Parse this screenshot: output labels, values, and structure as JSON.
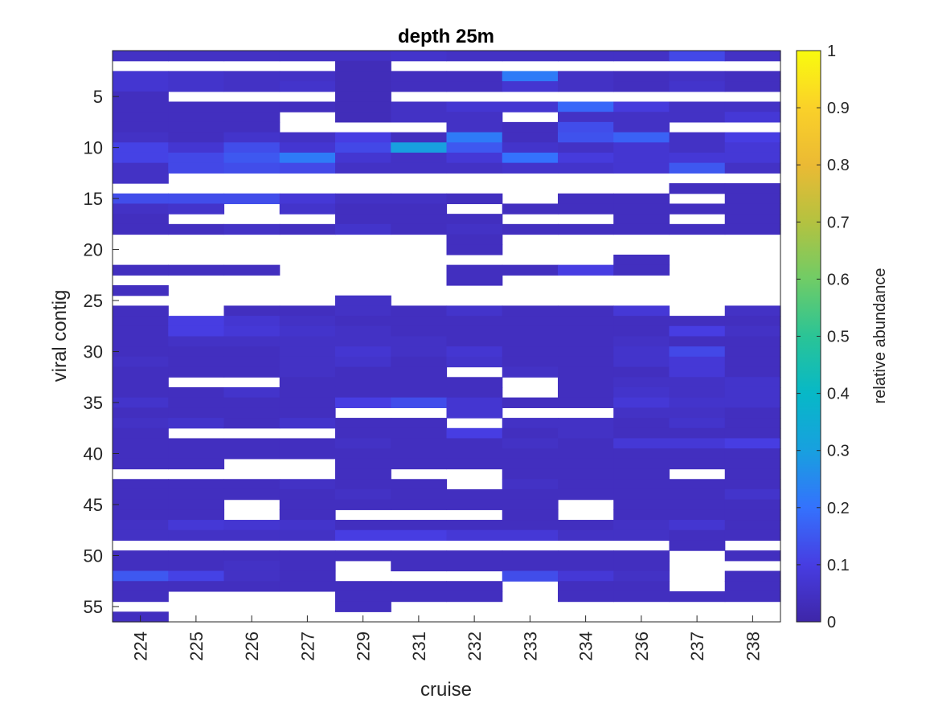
{
  "chart_data": {
    "type": "heatmap",
    "title": "depth 25m",
    "xlabel": "cruise",
    "ylabel": "viral contig",
    "colorbar_label": "relative abundance",
    "colormap": "parula",
    "clim": [
      0,
      1
    ],
    "colorbar_ticks": [
      "0",
      "0.1",
      "0.2",
      "0.3",
      "0.4",
      "0.5",
      "0.6",
      "0.7",
      "0.8",
      "0.9",
      "1"
    ],
    "y_ticks": [
      "5",
      "10",
      "15",
      "20",
      "25",
      "30",
      "35",
      "40",
      "45",
      "50",
      "55"
    ],
    "x": [
      "224",
      "225",
      "226",
      "227",
      "229",
      "231",
      "232",
      "233",
      "234",
      "236",
      "237",
      "238"
    ],
    "y": [
      1,
      2,
      3,
      4,
      5,
      6,
      7,
      8,
      9,
      10,
      11,
      12,
      13,
      14,
      15,
      16,
      17,
      18,
      19,
      20,
      21,
      22,
      23,
      24,
      25,
      26,
      27,
      28,
      29,
      30,
      31,
      32,
      33,
      34,
      35,
      36,
      37,
      38,
      39,
      40,
      41,
      42,
      43,
      44,
      45,
      46,
      47,
      48,
      49,
      50,
      51,
      52,
      53,
      54,
      55,
      56
    ],
    "missing_value": null,
    "values": [
      [
        0.05,
        0.05,
        0.05,
        0.05,
        0.05,
        0.06,
        0.05,
        0.05,
        0.05,
        0.05,
        0.12,
        0.05
      ],
      [
        null,
        null,
        null,
        null,
        0.03,
        null,
        null,
        null,
        null,
        null,
        null,
        null
      ],
      [
        0.07,
        0.06,
        0.05,
        0.05,
        0.03,
        0.04,
        0.04,
        0.22,
        0.05,
        0.04,
        0.05,
        0.04
      ],
      [
        0.07,
        0.06,
        0.05,
        0.06,
        0.03,
        0.04,
        0.04,
        0.07,
        0.05,
        0.04,
        0.06,
        0.04
      ],
      [
        0.04,
        null,
        null,
        null,
        0.03,
        null,
        null,
        null,
        null,
        null,
        null,
        null
      ],
      [
        0.04,
        0.04,
        0.04,
        0.04,
        0.03,
        0.05,
        0.07,
        0.07,
        0.18,
        0.09,
        0.05,
        0.05
      ],
      [
        0.04,
        0.04,
        0.04,
        null,
        0.03,
        0.05,
        0.05,
        null,
        0.05,
        0.05,
        0.05,
        0.08
      ],
      [
        0.04,
        0.04,
        0.04,
        null,
        null,
        null,
        0.05,
        0.04,
        0.13,
        0.05,
        null,
        null
      ],
      [
        0.05,
        0.04,
        0.06,
        0.05,
        0.1,
        0.04,
        0.22,
        0.04,
        0.14,
        0.17,
        0.05,
        0.1
      ],
      [
        0.11,
        0.07,
        0.13,
        0.07,
        0.12,
        0.3,
        0.15,
        0.06,
        0.05,
        0.07,
        0.05,
        0.08
      ],
      [
        0.11,
        0.12,
        0.15,
        0.22,
        0.07,
        0.05,
        0.08,
        0.2,
        0.09,
        0.07,
        0.08,
        0.08
      ],
      [
        0.05,
        0.12,
        0.13,
        0.12,
        0.05,
        0.05,
        0.05,
        0.06,
        0.06,
        0.07,
        0.15,
        0.05
      ],
      [
        0.05,
        null,
        null,
        null,
        null,
        null,
        null,
        null,
        null,
        null,
        null,
        null
      ],
      [
        null,
        null,
        null,
        null,
        null,
        null,
        null,
        null,
        null,
        null,
        0.04,
        0.04
      ],
      [
        0.13,
        0.13,
        0.13,
        0.08,
        0.05,
        0.05,
        0.04,
        null,
        0.04,
        0.04,
        null,
        0.04
      ],
      [
        0.05,
        0.06,
        null,
        0.06,
        0.04,
        0.04,
        null,
        0.04,
        0.04,
        0.04,
        0.04,
        0.04
      ],
      [
        0.04,
        null,
        null,
        null,
        0.04,
        0.04,
        0.04,
        null,
        null,
        0.04,
        null,
        0.04
      ],
      [
        0.04,
        0.04,
        0.05,
        0.04,
        0.06,
        0.04,
        0.05,
        0.04,
        0.04,
        0.04,
        0.04,
        0.04
      ],
      [
        null,
        null,
        null,
        null,
        null,
        null,
        0.04,
        null,
        null,
        null,
        null,
        null
      ],
      [
        null,
        null,
        null,
        null,
        null,
        null,
        0.04,
        null,
        null,
        null,
        null,
        null
      ],
      [
        null,
        null,
        null,
        null,
        null,
        null,
        null,
        null,
        null,
        0.04,
        null,
        null
      ],
      [
        0.04,
        0.04,
        0.04,
        null,
        null,
        null,
        0.04,
        0.04,
        0.1,
        0.04,
        null,
        null
      ],
      [
        null,
        null,
        null,
        null,
        null,
        null,
        0.04,
        null,
        null,
        null,
        null,
        null
      ],
      [
        0.04,
        null,
        null,
        null,
        null,
        null,
        null,
        null,
        null,
        null,
        null,
        null
      ],
      [
        null,
        null,
        null,
        null,
        0.05,
        null,
        null,
        null,
        null,
        null,
        null,
        null
      ],
      [
        0.04,
        null,
        0.04,
        0.04,
        0.05,
        0.04,
        0.06,
        0.04,
        0.04,
        0.08,
        null,
        0.05
      ],
      [
        0.04,
        0.1,
        0.07,
        0.05,
        0.04,
        0.04,
        0.04,
        0.04,
        0.04,
        0.04,
        0.04,
        0.04
      ],
      [
        0.04,
        0.1,
        0.08,
        0.06,
        0.05,
        0.04,
        0.04,
        0.04,
        0.04,
        0.04,
        0.1,
        0.05
      ],
      [
        0.04,
        0.05,
        0.05,
        0.05,
        0.05,
        0.05,
        0.04,
        0.04,
        0.04,
        0.05,
        0.04,
        0.04
      ],
      [
        0.04,
        0.04,
        0.04,
        0.05,
        0.07,
        0.05,
        0.07,
        0.04,
        0.04,
        0.06,
        0.12,
        0.04
      ],
      [
        0.05,
        0.04,
        0.04,
        0.05,
        0.06,
        0.04,
        0.06,
        0.04,
        0.04,
        0.06,
        0.08,
        0.04
      ],
      [
        0.04,
        0.04,
        0.04,
        0.05,
        0.04,
        0.04,
        null,
        0.05,
        0.04,
        0.04,
        0.08,
        0.04
      ],
      [
        0.04,
        null,
        null,
        0.04,
        0.04,
        0.04,
        0.04,
        null,
        0.04,
        0.05,
        0.05,
        0.06
      ],
      [
        0.04,
        0.04,
        0.06,
        0.04,
        0.04,
        0.04,
        0.04,
        null,
        0.04,
        0.06,
        0.05,
        0.06
      ],
      [
        0.06,
        0.04,
        0.04,
        0.04,
        0.1,
        0.13,
        0.07,
        0.04,
        0.04,
        0.08,
        0.06,
        0.06
      ],
      [
        0.04,
        0.04,
        0.04,
        0.04,
        null,
        null,
        0.07,
        null,
        null,
        0.05,
        0.05,
        0.04
      ],
      [
        0.05,
        0.06,
        0.04,
        0.06,
        0.04,
        0.04,
        null,
        0.05,
        0.05,
        0.04,
        0.06,
        0.04
      ],
      [
        0.04,
        null,
        null,
        null,
        0.04,
        0.04,
        0.1,
        0.04,
        0.05,
        0.04,
        0.04,
        0.04
      ],
      [
        0.04,
        0.04,
        0.04,
        0.04,
        0.05,
        0.04,
        0.04,
        0.05,
        0.04,
        0.08,
        0.08,
        0.1
      ],
      [
        0.04,
        0.04,
        0.04,
        0.04,
        0.04,
        0.04,
        0.04,
        0.04,
        0.04,
        0.04,
        0.04,
        0.04
      ],
      [
        0.04,
        0.04,
        null,
        null,
        0.04,
        0.04,
        0.04,
        0.04,
        0.04,
        0.04,
        0.04,
        0.04
      ],
      [
        null,
        null,
        null,
        null,
        0.04,
        null,
        null,
        0.04,
        0.04,
        0.04,
        null,
        0.04
      ],
      [
        0.04,
        0.04,
        0.04,
        0.05,
        0.04,
        0.04,
        null,
        0.05,
        0.04,
        0.04,
        0.04,
        0.04
      ],
      [
        0.04,
        0.04,
        0.04,
        0.04,
        0.05,
        0.04,
        0.04,
        0.04,
        0.04,
        0.04,
        0.04,
        0.06
      ],
      [
        0.04,
        0.04,
        null,
        0.04,
        0.04,
        0.04,
        0.04,
        0.04,
        null,
        0.04,
        0.04,
        0.04
      ],
      [
        0.04,
        0.04,
        null,
        0.04,
        null,
        null,
        null,
        0.04,
        null,
        0.04,
        0.04,
        0.04
      ],
      [
        0.05,
        0.08,
        0.07,
        0.06,
        0.04,
        0.04,
        0.04,
        0.04,
        0.04,
        0.05,
        0.07,
        0.04
      ],
      [
        0.05,
        0.05,
        0.05,
        0.05,
        0.1,
        0.1,
        0.08,
        0.08,
        0.05,
        0.05,
        0.04,
        0.04
      ],
      [
        null,
        null,
        null,
        null,
        null,
        null,
        null,
        null,
        null,
        null,
        0.04,
        null
      ],
      [
        0.04,
        0.04,
        0.04,
        0.04,
        0.04,
        0.04,
        0.04,
        0.04,
        0.04,
        0.04,
        null,
        0.04
      ],
      [
        0.04,
        0.04,
        0.05,
        0.04,
        null,
        0.04,
        0.04,
        0.04,
        0.04,
        0.04,
        null,
        null
      ],
      [
        0.15,
        0.11,
        0.05,
        0.04,
        null,
        null,
        null,
        0.13,
        0.08,
        0.05,
        null,
        0.04
      ],
      [
        0.04,
        0.04,
        0.04,
        0.04,
        0.04,
        0.04,
        0.04,
        null,
        0.04,
        0.04,
        null,
        0.04
      ],
      [
        0.04,
        null,
        null,
        null,
        0.04,
        0.04,
        0.04,
        null,
        0.04,
        0.04,
        0.04,
        0.04
      ],
      [
        null,
        null,
        null,
        null,
        0.04,
        null,
        null,
        null,
        null,
        null,
        null,
        null
      ],
      [
        0.04,
        null,
        null,
        null,
        null,
        null,
        null,
        null,
        null,
        null,
        null,
        null
      ]
    ]
  }
}
